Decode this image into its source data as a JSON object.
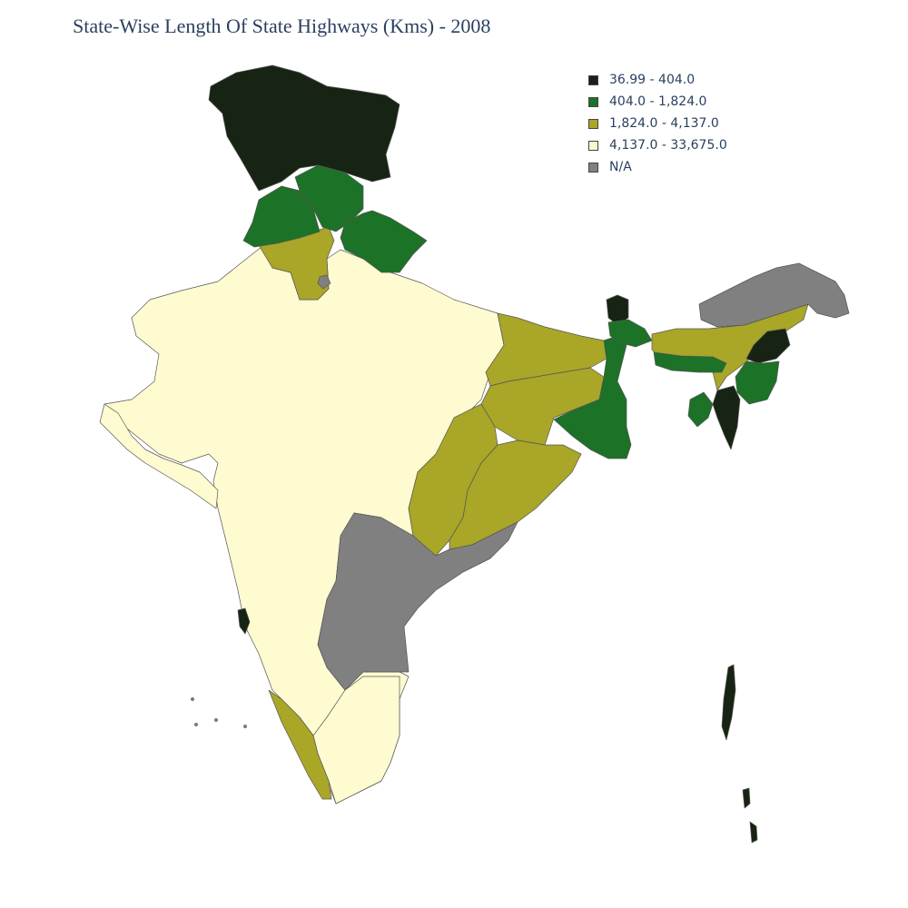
{
  "title": "State-Wise Length Of State Highways (Kms) - 2008",
  "legend": {
    "items": [
      {
        "label": "36.99 - 404.0",
        "color": "#172414"
      },
      {
        "label": "404.0 - 1,824.0",
        "color": "#1c7227"
      },
      {
        "label": "1,824.0 - 4,137.0",
        "color": "#a9a628"
      },
      {
        "label": "4,137.0 - 33,675.0",
        "color": "#fefbd0"
      },
      {
        "label": "N/A",
        "color": "#808080"
      }
    ]
  },
  "colors": {
    "c1": "#172414",
    "c2": "#1c7227",
    "c3": "#a9a628",
    "c4": "#fefbd0",
    "na": "#808080",
    "border": "#555555"
  }
}
